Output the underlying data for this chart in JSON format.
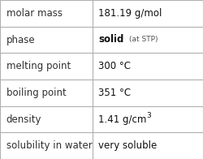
{
  "rows": [
    {
      "label": "molar mass",
      "value": "181.19 g/mol",
      "value_bold": false,
      "extra": null,
      "superscript": false
    },
    {
      "label": "phase",
      "value": "solid",
      "value_bold": true,
      "extra": "(at STP)",
      "superscript": false
    },
    {
      "label": "melting point",
      "value": "300 °C",
      "value_bold": false,
      "extra": null,
      "superscript": false
    },
    {
      "label": "boiling point",
      "value": "351 °C",
      "value_bold": false,
      "extra": null,
      "superscript": false
    },
    {
      "label": "density",
      "value": "1.41 g/cm",
      "value_bold": false,
      "extra": "3",
      "superscript": true
    },
    {
      "label": "solubility in water",
      "value": "very soluble",
      "value_bold": false,
      "extra": null,
      "superscript": false
    }
  ],
  "bg_color": "#ffffff",
  "line_color": "#b0b0b0",
  "label_color": "#303030",
  "value_color": "#101010",
  "extra_color": "#505050",
  "label_fontsize": 8.5,
  "value_fontsize": 8.5,
  "extra_fontsize": 6.5,
  "col_split": 0.455,
  "fig_width": 2.5,
  "fig_height": 1.96,
  "dpi": 100
}
